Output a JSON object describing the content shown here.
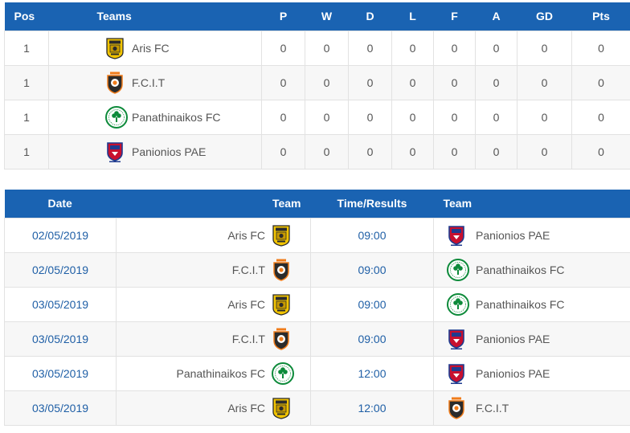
{
  "standings": {
    "headers": {
      "pos": "Pos",
      "teams": "Teams",
      "p": "P",
      "w": "W",
      "d": "D",
      "l": "L",
      "f": "F",
      "a": "A",
      "gd": "GD",
      "pts": "Pts"
    },
    "rows": [
      {
        "pos": "1",
        "team": "Aris FC",
        "logo": "aris-logo",
        "p": "0",
        "w": "0",
        "d": "0",
        "l": "0",
        "f": "0",
        "a": "0",
        "gd": "0",
        "pts": "0"
      },
      {
        "pos": "1",
        "team": "F.C.I.T",
        "logo": "fcit-logo",
        "p": "0",
        "w": "0",
        "d": "0",
        "l": "0",
        "f": "0",
        "a": "0",
        "gd": "0",
        "pts": "0"
      },
      {
        "pos": "1",
        "team": "Panathinaikos FC",
        "logo": "panathinaikos-logo",
        "p": "0",
        "w": "0",
        "d": "0",
        "l": "0",
        "f": "0",
        "a": "0",
        "gd": "0",
        "pts": "0"
      },
      {
        "pos": "1",
        "team": "Panionios PAE",
        "logo": "panionios-logo",
        "p": "0",
        "w": "0",
        "d": "0",
        "l": "0",
        "f": "0",
        "a": "0",
        "gd": "0",
        "pts": "0"
      }
    ]
  },
  "fixtures": {
    "headers": {
      "date": "Date",
      "home": "Team",
      "time": "Time/Results",
      "away": "Team"
    },
    "rows": [
      {
        "date": "02/05/2019",
        "home": "Aris FC",
        "home_logo": "aris-logo",
        "time": "09:00",
        "away": "Panionios PAE",
        "away_logo": "panionios-logo"
      },
      {
        "date": "02/05/2019",
        "home": "F.C.I.T",
        "home_logo": "fcit-logo",
        "time": "09:00",
        "away": "Panathinaikos FC",
        "away_logo": "panathinaikos-logo"
      },
      {
        "date": "03/05/2019",
        "home": "Aris FC",
        "home_logo": "aris-logo",
        "time": "09:00",
        "away": "Panathinaikos FC",
        "away_logo": "panathinaikos-logo"
      },
      {
        "date": "03/05/2019",
        "home": "F.C.I.T",
        "home_logo": "fcit-logo",
        "time": "09:00",
        "away": "Panionios PAE",
        "away_logo": "panionios-logo"
      },
      {
        "date": "03/05/2019",
        "home": "Panathinaikos FC",
        "home_logo": "panathinaikos-logo",
        "time": "12:00",
        "away": "Panionios PAE",
        "away_logo": "panionios-logo"
      },
      {
        "date": "03/05/2019",
        "home": "Aris FC",
        "home_logo": "aris-logo",
        "time": "12:00",
        "away": "F.C.I.T",
        "away_logo": "fcit-logo"
      }
    ]
  },
  "colors": {
    "header_bg": "#1a63b2",
    "link_blue": "#1f5fa6",
    "row_alt": "#f7f7f7",
    "border": "#e2e2e2"
  }
}
